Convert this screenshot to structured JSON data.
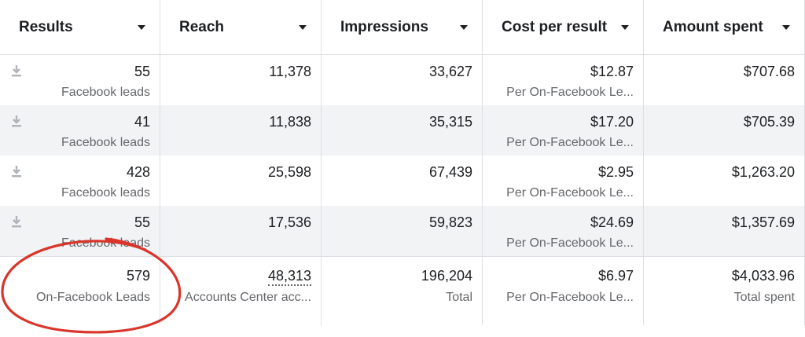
{
  "columns": [
    "Results",
    "Reach",
    "Impressions",
    "Cost per result",
    "Amount spent"
  ],
  "rows": [
    {
      "results": "55",
      "results_sub": "Facebook leads",
      "reach": "11,378",
      "impressions": "33,627",
      "cpr": "$12.87",
      "cpr_sub": "Per On-Facebook Le...",
      "spent": "$707.68"
    },
    {
      "results": "41",
      "results_sub": "Facebook leads",
      "reach": "11,838",
      "impressions": "35,315",
      "cpr": "$17.20",
      "cpr_sub": "Per On-Facebook Le...",
      "spent": "$705.39"
    },
    {
      "results": "428",
      "results_sub": "Facebook leads",
      "reach": "25,598",
      "impressions": "67,439",
      "cpr": "$2.95",
      "cpr_sub": "Per On-Facebook Le...",
      "spent": "$1,263.20"
    },
    {
      "results": "55",
      "results_sub": "Facebook leads",
      "reach": "17,536",
      "impressions": "59,823",
      "cpr": "$24.69",
      "cpr_sub": "Per On-Facebook Le...",
      "spent": "$1,357.69"
    }
  ],
  "totals": {
    "results": "579",
    "results_sub": "On-Facebook Leads",
    "reach": "48,313",
    "reach_sub": "Accounts Center acc...",
    "impressions": "196,204",
    "impressions_sub": "Total",
    "cpr": "$6.97",
    "cpr_sub": "Per On-Facebook Le...",
    "spent": "$4,033.96",
    "spent_sub": "Total spent"
  },
  "colors": {
    "highlight_circle": "#d9352b",
    "alt_row": "#f2f3f5",
    "muted_text": "#65676b"
  },
  "icons": {
    "row_action": "download-icon",
    "sort": "caret-down-icon"
  }
}
